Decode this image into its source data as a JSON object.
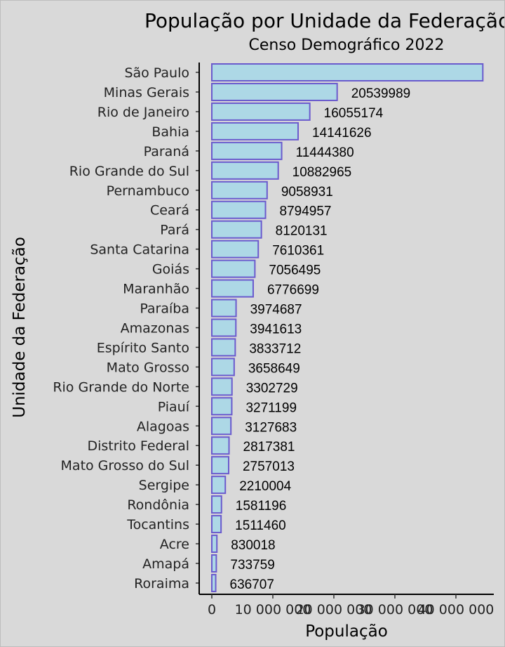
{
  "chart_data": {
    "type": "bar",
    "orientation": "horizontal",
    "title": "População por Unidade da Federação",
    "subtitle": "Censo Demográfico 2022",
    "xlabel": "População",
    "ylabel": "Unidade da Federação",
    "xlim": [
      0,
      46000000
    ],
    "xticks": [
      0,
      10000000,
      20000000,
      30000000,
      40000000
    ],
    "xtick_labels": [
      "0",
      "10 000 000",
      "20 000 000",
      "30 000 000",
      "40 000 000"
    ],
    "grid": false,
    "categories": [
      "São Paulo",
      "Minas Gerais",
      "Rio de Janeiro",
      "Bahia",
      "Paraná",
      "Rio Grande do Sul",
      "Pernambuco",
      "Ceará",
      "Pará",
      "Santa Catarina",
      "Goiás",
      "Maranhão",
      "Paraíba",
      "Amazonas",
      "Espírito Santo",
      "Mato Grosso",
      "Rio Grande do Norte",
      "Piauí",
      "Alagoas",
      "Distrito Federal",
      "Mato Grosso do Sul",
      "Sergipe",
      "Rondônia",
      "Tocantins",
      "Acre",
      "Amapá",
      "Roraima"
    ],
    "values": [
      44411238,
      20539989,
      16055174,
      14141626,
      11444380,
      10882965,
      9058931,
      8794957,
      8120131,
      7610361,
      7056495,
      6776699,
      3974687,
      3941613,
      3833712,
      3658649,
      3302729,
      3271199,
      3127683,
      2817381,
      2757013,
      2210004,
      1581196,
      1511460,
      830018,
      733759,
      636707
    ],
    "labels": [
      "",
      "20539989",
      "16055174",
      "14141626",
      "11444380",
      "10882965",
      "9058931",
      "8794957",
      "8120131",
      "7610361",
      "7056495",
      "6776699",
      "3974687",
      "3941613",
      "3833712",
      "3658649",
      "3302729",
      "3271199",
      "3127683",
      "2817381",
      "2757013",
      "2210004",
      "1581196",
      "1511460",
      "830018",
      "733759",
      "636707"
    ],
    "colors": {
      "bar_fill": "#add8e6",
      "bar_stroke": "#6a5acd",
      "background": "#d9d9d9"
    }
  }
}
